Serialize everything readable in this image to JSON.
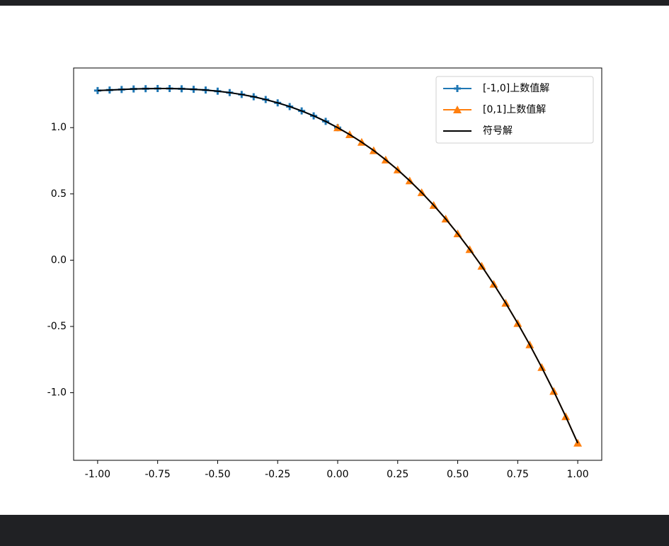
{
  "chart_data": {
    "type": "line",
    "xlim": [
      -1.1,
      1.1
    ],
    "ylim": [
      -1.51,
      1.45
    ],
    "xticks": [
      {
        "value": -1,
        "label": "-1.00"
      },
      {
        "value": -0.75,
        "label": "-0.75"
      },
      {
        "value": -0.5,
        "label": "-0.50"
      },
      {
        "value": -0.25,
        "label": "-0.25"
      },
      {
        "value": 0,
        "label": "0.00"
      },
      {
        "value": 0.25,
        "label": "0.25"
      },
      {
        "value": 0.5,
        "label": "0.50"
      },
      {
        "value": 0.75,
        "label": "0.75"
      },
      {
        "value": 1,
        "label": "1.00"
      }
    ],
    "yticks": [
      {
        "value": -1,
        "label": "-1.0"
      },
      {
        "value": -0.5,
        "label": "-0.5"
      },
      {
        "value": 0,
        "label": "0.0"
      },
      {
        "value": 0.5,
        "label": "0.5"
      },
      {
        "value": 1,
        "label": "1.0"
      }
    ],
    "legend": "upper right",
    "series": [
      {
        "name": "[-1,0]上数值解",
        "color": "#1f77b4",
        "marker": "plus",
        "x": [
          -1,
          -0.95,
          -0.9,
          -0.85,
          -0.8,
          -0.75,
          -0.7,
          -0.65,
          -0.6,
          -0.55,
          -0.5,
          -0.45,
          -0.4,
          -0.35,
          -0.3,
          -0.25,
          -0.2,
          -0.15,
          -0.1,
          -0.05,
          0
        ],
        "values": [
          1.28,
          1.284,
          1.288,
          1.292,
          1.294,
          1.295,
          1.295,
          1.293,
          1.289,
          1.284,
          1.275,
          1.264,
          1.25,
          1.233,
          1.212,
          1.187,
          1.159,
          1.126,
          1.089,
          1.047,
          1
        ]
      },
      {
        "name": "[0,1]上数值解",
        "color": "#ff7f0e",
        "marker": "triangle",
        "x": [
          0,
          0.05,
          0.1,
          0.15,
          0.2,
          0.25,
          0.3,
          0.35,
          0.4,
          0.45,
          0.5,
          0.55,
          0.6,
          0.65,
          0.7,
          0.75,
          0.8,
          0.85,
          0.9,
          0.95,
          1
        ],
        "values": [
          1,
          0.948,
          0.89,
          0.827,
          0.757,
          0.682,
          0.599,
          0.51,
          0.414,
          0.311,
          0.2,
          0.081,
          -0.045,
          -0.181,
          -0.324,
          -0.477,
          -0.638,
          -0.809,
          -0.989,
          -1.18,
          -1.38
        ]
      },
      {
        "name": "符号解",
        "color": "#000000",
        "marker": "none",
        "x": [
          -1,
          -0.95,
          -0.9,
          -0.85,
          -0.8,
          -0.75,
          -0.7,
          -0.65,
          -0.6,
          -0.55,
          -0.5,
          -0.45,
          -0.4,
          -0.35,
          -0.3,
          -0.25,
          -0.2,
          -0.15,
          -0.1,
          -0.05,
          0,
          0.05,
          0.1,
          0.15,
          0.2,
          0.25,
          0.3,
          0.35,
          0.4,
          0.45,
          0.5,
          0.55,
          0.6,
          0.65,
          0.7,
          0.75,
          0.8,
          0.85,
          0.9,
          0.95,
          1
        ],
        "values": [
          1.28,
          1.284,
          1.288,
          1.292,
          1.294,
          1.295,
          1.295,
          1.293,
          1.289,
          1.284,
          1.275,
          1.264,
          1.25,
          1.233,
          1.212,
          1.187,
          1.159,
          1.126,
          1.089,
          1.047,
          1,
          0.948,
          0.89,
          0.827,
          0.757,
          0.682,
          0.599,
          0.51,
          0.414,
          0.311,
          0.2,
          0.081,
          -0.045,
          -0.181,
          -0.324,
          -0.477,
          -0.638,
          -0.809,
          -0.989,
          -1.18,
          -1.38
        ]
      }
    ]
  }
}
